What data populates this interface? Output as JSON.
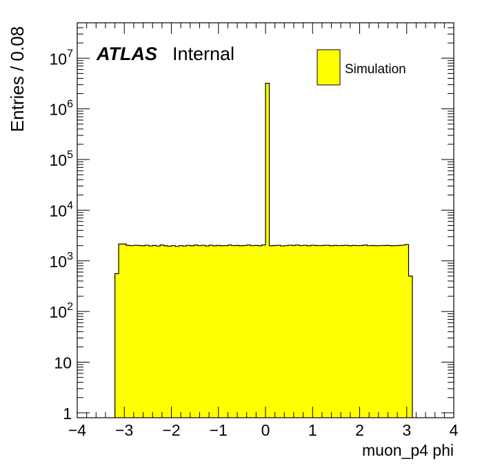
{
  "chart_data": {
    "type": "bar",
    "subtype": "histogram",
    "title": "",
    "xlabel": "muon_p4 phi",
    "ylabel": "Entries / 0.08",
    "xlim": [
      -4,
      4
    ],
    "ylim": [
      0.8,
      50000000
    ],
    "yscale": "log",
    "bin_width": 0.08,
    "bin_start": -3.2,
    "x_ticks": [
      "−4",
      "−3",
      "−2",
      "−1",
      "0",
      "1",
      "2",
      "3",
      "4"
    ],
    "y_ticks": [
      {
        "base": "1",
        "exp": ""
      },
      {
        "base": "10",
        "exp": ""
      },
      {
        "base": "10",
        "exp": "2"
      },
      {
        "base": "10",
        "exp": "3"
      },
      {
        "base": "10",
        "exp": "4"
      },
      {
        "base": "10",
        "exp": "5"
      },
      {
        "base": "10",
        "exp": "6"
      },
      {
        "base": "10",
        "exp": "7"
      }
    ],
    "fill_color": "#ffff00",
    "line_color": "#000000",
    "series": [
      {
        "name": "Simulation",
        "values": [
          560,
          2150,
          2150,
          2020,
          2000,
          2030,
          2010,
          1990,
          2040,
          1970,
          2020,
          1960,
          2050,
          1990,
          1950,
          2000,
          1930,
          2000,
          1960,
          2030,
          1980,
          2050,
          2000,
          2030,
          1960,
          2040,
          1990,
          2020,
          1990,
          2000,
          2050,
          2000,
          2020,
          1990,
          2010,
          2050,
          2000,
          2020,
          1990,
          2060,
          3200000,
          1990,
          2010,
          2030,
          1970,
          2000,
          2040,
          2010,
          2050,
          2000,
          2030,
          1990,
          2040,
          2010,
          2000,
          2020,
          2040,
          1990,
          2020,
          2000,
          2010,
          2030,
          1990,
          2020,
          2000,
          2010,
          2050,
          2000,
          2010,
          1990,
          2000,
          2010,
          2020,
          1990,
          2000,
          2010,
          2040,
          2100,
          500
        ]
      }
    ],
    "legend": {
      "position": "top-right",
      "entries": [
        "Simulation"
      ]
    },
    "grid": false
  },
  "labels": {
    "atlas": "ATLAS",
    "internal": "Internal"
  }
}
